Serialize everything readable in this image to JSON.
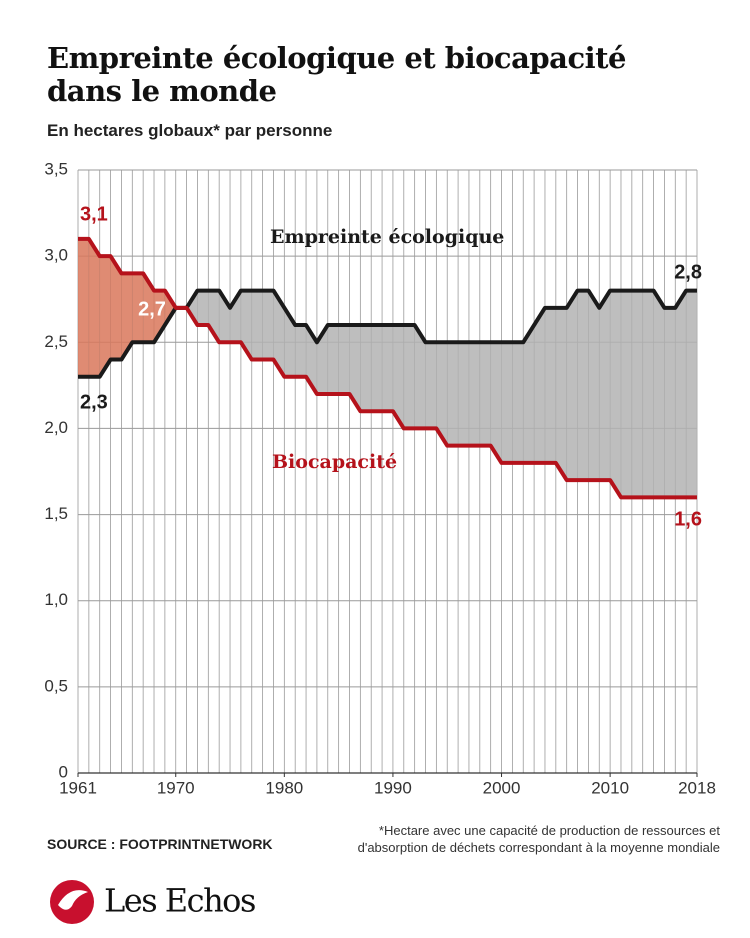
{
  "chart_data": {
    "type": "line",
    "title": "Empreinte écologique et biocapacité dans le monde",
    "subtitle": "En hectares globaux* par personne",
    "source": "SOURCE : FOOTPRINTNETWORK",
    "note": "*Hectare avec une capacité de production de ressources et d'absorption de déchets correspondant à la moyenne mondiale",
    "logo": "Les Echos",
    "x": [
      1961,
      1962,
      1963,
      1964,
      1965,
      1966,
      1967,
      1968,
      1969,
      1970,
      1971,
      1972,
      1973,
      1974,
      1975,
      1976,
      1977,
      1978,
      1979,
      1980,
      1981,
      1982,
      1983,
      1984,
      1985,
      1986,
      1987,
      1988,
      1989,
      1990,
      1991,
      1992,
      1993,
      1994,
      1995,
      1996,
      1997,
      1998,
      1999,
      2000,
      2001,
      2002,
      2003,
      2004,
      2005,
      2006,
      2007,
      2008,
      2009,
      2010,
      2011,
      2012,
      2013,
      2014,
      2015,
      2016,
      2017,
      2018
    ],
    "series": [
      {
        "name": "Empreinte écologique",
        "color": "#1a1a1a",
        "values": [
          2.3,
          2.3,
          2.3,
          2.4,
          2.4,
          2.5,
          2.5,
          2.5,
          2.6,
          2.7,
          2.7,
          2.8,
          2.8,
          2.8,
          2.7,
          2.8,
          2.8,
          2.8,
          2.8,
          2.7,
          2.6,
          2.6,
          2.5,
          2.6,
          2.6,
          2.6,
          2.6,
          2.6,
          2.6,
          2.6,
          2.6,
          2.6,
          2.5,
          2.5,
          2.5,
          2.5,
          2.5,
          2.5,
          2.5,
          2.5,
          2.5,
          2.5,
          2.6,
          2.7,
          2.7,
          2.7,
          2.8,
          2.8,
          2.7,
          2.8,
          2.8,
          2.8,
          2.8,
          2.8,
          2.7,
          2.7,
          2.8,
          2.8
        ],
        "value_labels": [
          "2,3",
          null,
          null,
          null,
          null,
          null,
          null,
          null,
          null,
          "2,7",
          null,
          null,
          null,
          null,
          null,
          null,
          null,
          null,
          null,
          null,
          null,
          null,
          null,
          null,
          null,
          null,
          null,
          null,
          null,
          null,
          null,
          null,
          null,
          null,
          null,
          null,
          null,
          null,
          null,
          null,
          null,
          null,
          null,
          null,
          null,
          null,
          null,
          null,
          null,
          null,
          null,
          null,
          null,
          null,
          null,
          null,
          null,
          "2,8"
        ]
      },
      {
        "name": "Biocapacité",
        "color": "#b5121b",
        "values": [
          3.1,
          3.1,
          3.0,
          3.0,
          2.9,
          2.9,
          2.9,
          2.8,
          2.8,
          2.7,
          2.7,
          2.6,
          2.6,
          2.5,
          2.5,
          2.5,
          2.4,
          2.4,
          2.4,
          2.3,
          2.3,
          2.3,
          2.2,
          2.2,
          2.2,
          2.2,
          2.1,
          2.1,
          2.1,
          2.1,
          2.0,
          2.0,
          2.0,
          2.0,
          1.9,
          1.9,
          1.9,
          1.9,
          1.9,
          1.8,
          1.8,
          1.8,
          1.8,
          1.8,
          1.8,
          1.7,
          1.7,
          1.7,
          1.7,
          1.7,
          1.6,
          1.6,
          1.6,
          1.6,
          1.6,
          1.6,
          1.6,
          1.6
        ],
        "value_labels": [
          "3,1",
          null,
          null,
          null,
          null,
          null,
          null,
          null,
          null,
          null,
          null,
          null,
          null,
          null,
          null,
          null,
          null,
          null,
          null,
          null,
          null,
          null,
          null,
          null,
          null,
          null,
          null,
          null,
          null,
          null,
          null,
          null,
          null,
          null,
          null,
          null,
          null,
          null,
          null,
          null,
          null,
          null,
          null,
          null,
          null,
          null,
          null,
          null,
          null,
          null,
          null,
          null,
          null,
          null,
          null,
          null,
          null,
          "1,6"
        ]
      }
    ],
    "fill_colors": [
      "#b3b3b3",
      "#d9775b"
    ],
    "xlim": [
      1961,
      2018
    ],
    "xticks": [
      1961,
      1970,
      1980,
      1990,
      2000,
      2010,
      2018
    ],
    "ylim": [
      0,
      3.5
    ],
    "yticks": [
      0,
      {
        "value": 0.5,
        "label": "0,5"
      },
      {
        "value": 1,
        "label": "1,0"
      },
      {
        "value": 1.5,
        "label": "1,5"
      },
      {
        "value": 2,
        "label": "2,0"
      },
      {
        "value": 2.5,
        "label": "2,5"
      },
      {
        "value": 3,
        "label": "3,0"
      },
      {
        "value": 3.5,
        "label": "3,5"
      }
    ],
    "grid": true
  }
}
